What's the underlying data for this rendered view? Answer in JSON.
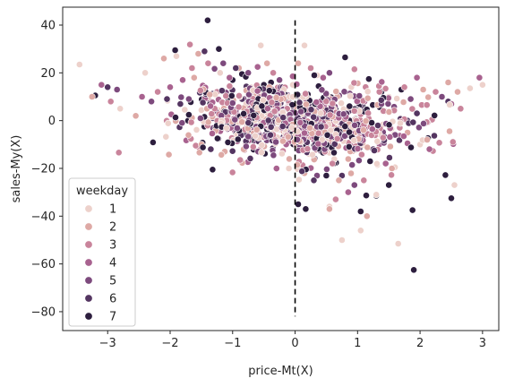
{
  "chart_data": {
    "type": "scatter",
    "xlabel": "price-Mt(X)",
    "ylabel": "sales-My(X)",
    "xlim": [
      -3.72,
      3.26
    ],
    "ylim": [
      -87.9,
      47.5
    ],
    "xticks": [
      -3,
      -2,
      -1,
      0,
      1,
      2,
      3
    ],
    "yticks": [
      -80,
      -60,
      -40,
      -20,
      0,
      20,
      40
    ],
    "grid": false,
    "vline": {
      "x": 0,
      "y_from": -82,
      "y_to": 42,
      "style": "dashed",
      "color": "#000000"
    },
    "legend": {
      "title": "weekday",
      "placement": "lower-left",
      "entries": [
        "1",
        "2",
        "3",
        "4",
        "5",
        "6",
        "7"
      ]
    },
    "palette": [
      "#edd1cb",
      "#dea9a5",
      "#c9849b",
      "#a8628f",
      "#7d4a7d",
      "#543561",
      "#2d1e3e"
    ],
    "marker_edge_color": "#ffffff",
    "n_points_core": 1100,
    "series": [
      {
        "name": "1",
        "highlights": [
          [
            -3.45,
            23.5
          ],
          [
            -2.4,
            20
          ],
          [
            -1.9,
            27
          ],
          [
            -0.55,
            31.5
          ],
          [
            0.15,
            31.5
          ],
          [
            0.75,
            -50
          ],
          [
            1.05,
            -46
          ],
          [
            1.65,
            -51.5
          ],
          [
            2.55,
            -27
          ],
          [
            2.8,
            13.5
          ],
          [
            3.0,
            15
          ],
          [
            2.0,
            -10
          ],
          [
            1.3,
            -31
          ],
          [
            0.55,
            -36
          ],
          [
            -0.1,
            -20
          ],
          [
            1.5,
            10
          ],
          [
            -1.2,
            20
          ],
          [
            0.9,
            14
          ],
          [
            -2.8,
            5
          ],
          [
            0.35,
            19
          ]
        ]
      },
      {
        "name": "2",
        "highlights": [
          [
            -3.25,
            10
          ],
          [
            -2.55,
            2
          ],
          [
            -2.1,
            26
          ],
          [
            -1.55,
            28
          ],
          [
            -0.45,
            24
          ],
          [
            0.05,
            24
          ],
          [
            0.15,
            -22
          ],
          [
            0.55,
            -37
          ],
          [
            1.15,
            -40
          ],
          [
            1.55,
            -20
          ],
          [
            2.05,
            13
          ],
          [
            2.6,
            12
          ],
          [
            2.45,
            16
          ],
          [
            -1.5,
            -10
          ],
          [
            0.7,
            -25
          ],
          [
            1.8,
            -5
          ],
          [
            -0.9,
            22
          ]
        ]
      },
      {
        "name": "3",
        "highlights": [
          [
            -2.95,
            8
          ],
          [
            -2.2,
            12
          ],
          [
            -1.65,
            22
          ],
          [
            -1.25,
            12
          ],
          [
            0.25,
            22
          ],
          [
            0.65,
            -33
          ],
          [
            1.35,
            12
          ],
          [
            1.75,
            14
          ],
          [
            2.25,
            12
          ],
          [
            2.65,
            5
          ],
          [
            -0.35,
            20
          ],
          [
            0.95,
            21.5
          ],
          [
            1.1,
            -25
          ]
        ]
      },
      {
        "name": "4",
        "highlights": [
          [
            -3.1,
            15
          ],
          [
            -2.45,
            10
          ],
          [
            -1.8,
            17
          ],
          [
            -1.05,
            18
          ],
          [
            -0.6,
            22.5
          ],
          [
            0.45,
            18
          ],
          [
            0.85,
            -30
          ],
          [
            1.45,
            -18
          ],
          [
            2.15,
            -12
          ],
          [
            2.5,
            7
          ],
          [
            2.95,
            18
          ],
          [
            1.95,
            18
          ],
          [
            -2.0,
            14
          ]
        ]
      },
      {
        "name": "5",
        "highlights": [
          [
            -2.85,
            13
          ],
          [
            -2.3,
            8
          ],
          [
            -1.7,
            9
          ],
          [
            -1.15,
            24
          ],
          [
            -0.75,
            20
          ],
          [
            0.35,
            -23
          ],
          [
            0.95,
            -27
          ],
          [
            1.6,
            -6
          ],
          [
            2.35,
            10
          ],
          [
            1.85,
            9
          ],
          [
            -0.25,
            17
          ],
          [
            0.55,
            20
          ]
        ]
      },
      {
        "name": "6",
        "highlights": [
          [
            -3.0,
            14
          ],
          [
            -2.05,
            9
          ],
          [
            -1.45,
            29
          ],
          [
            -0.95,
            22
          ],
          [
            -0.2,
            14
          ],
          [
            0.3,
            -25
          ],
          [
            0.75,
            -23
          ],
          [
            1.25,
            -12
          ],
          [
            1.95,
            3
          ],
          [
            2.45,
            8
          ],
          [
            -1.35,
            -12
          ],
          [
            1.05,
            6
          ]
        ]
      },
      {
        "name": "7",
        "highlights": [
          [
            -3.2,
            10.5
          ],
          [
            -1.92,
            29.5
          ],
          [
            -1.4,
            42
          ],
          [
            -1.32,
            -20.5
          ],
          [
            -1.22,
            30
          ],
          [
            0.17,
            -37
          ],
          [
            0.8,
            26.5
          ],
          [
            1.05,
            -38
          ],
          [
            1.3,
            -31.5
          ],
          [
            1.88,
            -37.5
          ],
          [
            1.9,
            -62.5
          ],
          [
            2.5,
            -32.5
          ],
          [
            -0.5,
            15
          ],
          [
            0.5,
            -23
          ],
          [
            1.2,
            -17
          ],
          [
            1.5,
            -27
          ],
          [
            0.62,
            -18
          ],
          [
            -1.0,
            17
          ],
          [
            0.05,
            -35
          ],
          [
            -0.85,
            19.5
          ],
          [
            1.7,
            13
          ]
        ]
      }
    ]
  }
}
